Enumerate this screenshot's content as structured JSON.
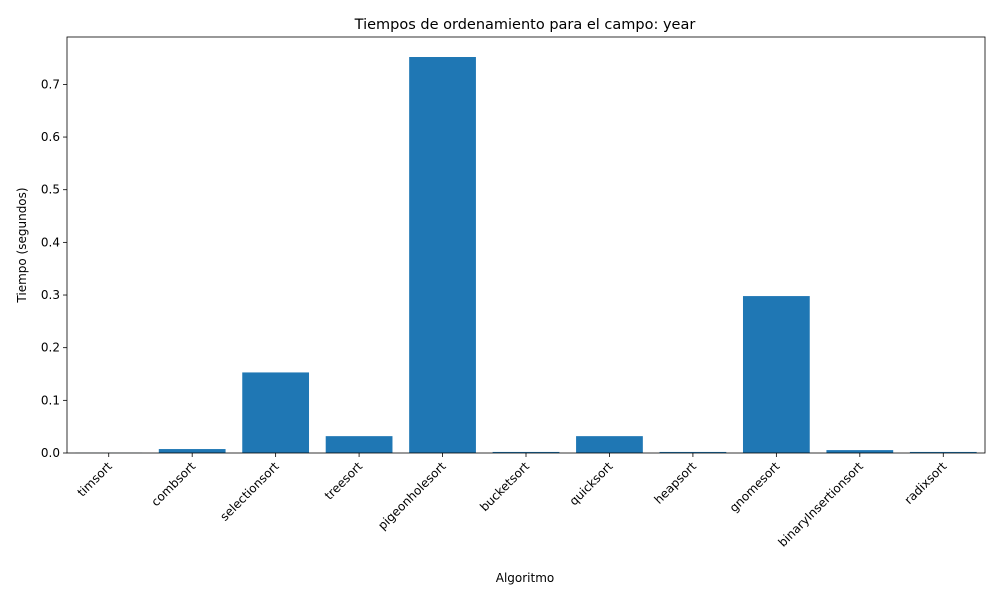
{
  "chart_data": {
    "type": "bar",
    "title": "Tiempos de ordenamiento para el campo: year",
    "xlabel": "Algoritmo",
    "ylabel": "Tiempo (segundos)",
    "categories": [
      "timsort",
      "combsort",
      "selectionsort",
      "treesort",
      "pigeonholesort",
      "bucketsort",
      "quicksort",
      "heapsort",
      "gnomesort",
      "binaryInsertionsort",
      "radixsort"
    ],
    "values": [
      0.0003,
      0.0075,
      0.153,
      0.032,
      0.752,
      0.002,
      0.032,
      0.002,
      0.298,
      0.0055,
      0.002
    ],
    "ylim": [
      0,
      0.79
    ],
    "yticks": [
      "0.0",
      "0.1",
      "0.2",
      "0.3",
      "0.4",
      "0.5",
      "0.6",
      "0.7"
    ],
    "bar_color": "#1f77b4",
    "grid": false
  }
}
